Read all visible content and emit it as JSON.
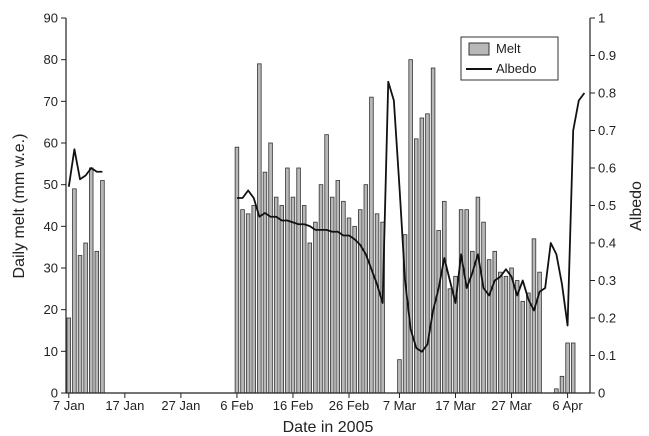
{
  "chart_data": {
    "type": "bar",
    "xlabel": "Date in 2005",
    "ylabel_left": "Daily melt (mm w.e.)",
    "ylabel_right": "Albedo",
    "x_unit": "day of year 2005",
    "xlim": [
      6.5,
      100
    ],
    "ylim_left": [
      0,
      90
    ],
    "ylim_right": [
      0,
      1
    ],
    "x_ticks": [
      {
        "day": 7,
        "label": "7 Jan"
      },
      {
        "day": 17,
        "label": "17 Jan"
      },
      {
        "day": 27,
        "label": "27 Jan"
      },
      {
        "day": 37,
        "label": "6 Feb"
      },
      {
        "day": 47,
        "label": "16 Feb"
      },
      {
        "day": 57,
        "label": "26 Feb"
      },
      {
        "day": 66,
        "label": "7 Mar"
      },
      {
        "day": 76,
        "label": "17 Mar"
      },
      {
        "day": 86,
        "label": "27 Mar"
      },
      {
        "day": 96,
        "label": "6 Apr"
      }
    ],
    "y_ticks_left": [
      {
        "value": 0,
        "label": "0"
      },
      {
        "value": 10,
        "label": "10"
      },
      {
        "value": 20,
        "label": "20"
      },
      {
        "value": 30,
        "label": "30"
      },
      {
        "value": 40,
        "label": "40"
      },
      {
        "value": 50,
        "label": "50"
      },
      {
        "value": 60,
        "label": "60"
      },
      {
        "value": 70,
        "label": "70"
      },
      {
        "value": 80,
        "label": "80"
      },
      {
        "value": 90,
        "label": "90"
      }
    ],
    "y_ticks_right": [
      {
        "value": 0,
        "label": "0"
      },
      {
        "value": 0.1,
        "label": "0.1"
      },
      {
        "value": 0.2,
        "label": "0.2"
      },
      {
        "value": 0.3,
        "label": "0.3"
      },
      {
        "value": 0.4,
        "label": "0.4"
      },
      {
        "value": 0.5,
        "label": "0.5"
      },
      {
        "value": 0.6,
        "label": "0.6"
      },
      {
        "value": 0.7,
        "label": "0.7"
      },
      {
        "value": 0.8,
        "label": "0.8"
      },
      {
        "value": 0.9,
        "label": "0.9"
      },
      {
        "value": 1,
        "label": "1"
      }
    ],
    "legend": {
      "position": "top-right",
      "entries": [
        "Melt",
        "Albedo"
      ]
    },
    "grid": false,
    "series": [
      {
        "name": "Melt",
        "type": "bar",
        "axis": "left",
        "color": "#b8b8b8",
        "x": [
          7,
          8,
          9,
          10,
          11,
          12,
          13,
          37,
          38,
          39,
          40,
          41,
          42,
          43,
          44,
          45,
          46,
          47,
          48,
          49,
          50,
          51,
          52,
          53,
          54,
          55,
          56,
          57,
          58,
          59,
          60,
          61,
          62,
          63,
          64,
          65,
          66,
          67,
          68,
          69,
          70,
          71,
          72,
          73,
          74,
          75,
          76,
          77,
          78,
          79,
          80,
          81,
          82,
          83,
          84,
          85,
          86,
          87,
          88,
          89,
          90,
          91,
          92,
          93,
          94,
          95,
          96,
          97,
          98,
          99
        ],
        "values": [
          18,
          49,
          33,
          36,
          54,
          34,
          51,
          59,
          44,
          43,
          45,
          79,
          53,
          60,
          47,
          45,
          54,
          47,
          54,
          45,
          36,
          41,
          50,
          62,
          47,
          51,
          46,
          42,
          40,
          44,
          50,
          71,
          43,
          41,
          0,
          0,
          8,
          38,
          80,
          61,
          66,
          67,
          78,
          39,
          46,
          25,
          28,
          44,
          44,
          34,
          47,
          41,
          32,
          34,
          29,
          28,
          30,
          27,
          22,
          24,
          37,
          29,
          0,
          0,
          1,
          4,
          12,
          12,
          0,
          0
        ]
      },
      {
        "name": "Albedo",
        "type": "line",
        "axis": "right",
        "color": "#111111",
        "segments": [
          {
            "x": [
              7,
              8,
              9,
              10,
              11,
              12,
              13
            ],
            "y": [
              0.55,
              0.65,
              0.57,
              0.58,
              0.6,
              0.59,
              0.59
            ]
          },
          {
            "x": [
              37,
              38,
              39,
              40,
              41,
              42,
              43,
              44,
              45,
              46,
              47,
              48,
              49,
              50,
              51,
              52,
              53,
              54,
              55,
              56,
              57,
              58,
              59,
              60,
              61,
              62,
              63,
              64,
              65,
              66,
              67,
              68,
              69,
              70,
              71,
              72,
              73,
              74,
              75,
              76,
              77,
              78,
              79,
              80,
              81,
              82,
              83,
              84,
              85,
              86,
              87,
              88,
              89,
              90,
              91,
              92,
              93,
              94,
              95,
              96,
              97,
              98,
              99
            ],
            "y": [
              0.52,
              0.52,
              0.54,
              0.52,
              0.47,
              0.48,
              0.47,
              0.47,
              0.46,
              0.46,
              0.455,
              0.45,
              0.45,
              0.445,
              0.435,
              0.435,
              0.435,
              0.43,
              0.43,
              0.42,
              0.42,
              0.41,
              0.395,
              0.37,
              0.33,
              0.29,
              0.24,
              0.83,
              0.78,
              0.55,
              0.3,
              0.17,
              0.12,
              0.11,
              0.13,
              0.22,
              0.28,
              0.36,
              0.3,
              0.24,
              0.37,
              0.28,
              0.32,
              0.37,
              0.28,
              0.26,
              0.3,
              0.31,
              0.33,
              0.31,
              0.26,
              0.3,
              0.25,
              0.22,
              0.27,
              0.28,
              0.4,
              0.37,
              0.29,
              0.18,
              0.7,
              0.78,
              0.8
            ]
          }
        ]
      }
    ]
  }
}
